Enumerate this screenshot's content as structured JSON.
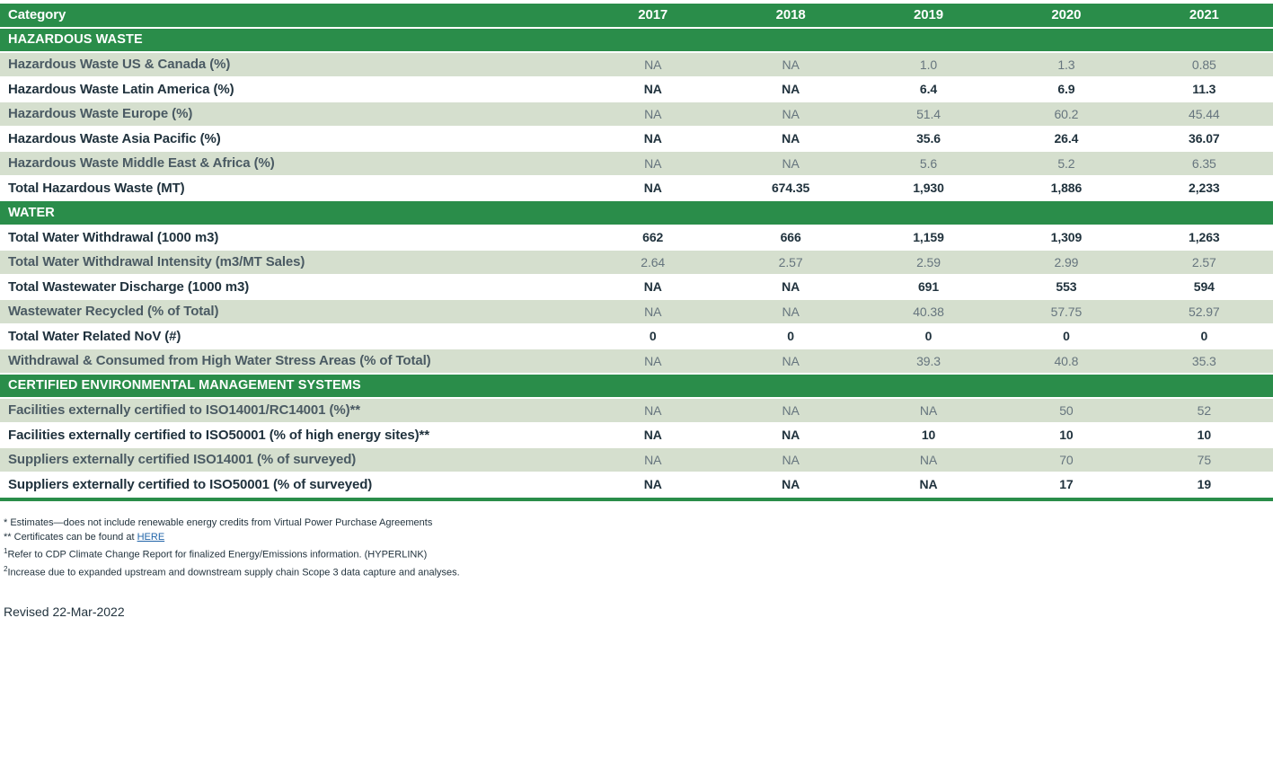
{
  "colors": {
    "header_green": "#2A8D4A",
    "row_light_green": "#D5DFCE",
    "row_white": "#FFFFFF",
    "text_dark": "#20323D",
    "text_light_label": "#4A5A63",
    "text_light_value": "#66757E",
    "link_blue": "#1F63A8"
  },
  "table": {
    "columns": [
      "Category",
      "2017",
      "2018",
      "2019",
      "2020",
      "2021"
    ],
    "sections": [
      {
        "title": "HAZARDOUS WASTE",
        "rows": [
          {
            "label": "Hazardous Waste US & Canada (%)",
            "values": [
              "NA",
              "NA",
              "1.0",
              "1.3",
              "0.85"
            ]
          },
          {
            "label": "Hazardous Waste Latin America (%)",
            "values": [
              "NA",
              "NA",
              "6.4",
              "6.9",
              "11.3"
            ]
          },
          {
            "label": "Hazardous Waste Europe (%)",
            "values": [
              "NA",
              "NA",
              "51.4",
              "60.2",
              "45.44"
            ]
          },
          {
            "label": "Hazardous Waste Asia Pacific (%)",
            "values": [
              "NA",
              "NA",
              "35.6",
              "26.4",
              "36.07"
            ]
          },
          {
            "label": "Hazardous Waste Middle East & Africa (%)",
            "values": [
              "NA",
              "NA",
              "5.6",
              "5.2",
              "6.35"
            ]
          },
          {
            "label": "Total Hazardous Waste (MT)",
            "values": [
              "NA",
              "674.35",
              "1,930",
              "1,886",
              "2,233"
            ]
          }
        ]
      },
      {
        "title": "WATER",
        "rows": [
          {
            "label": "Total Water Withdrawal (1000 m3)",
            "values": [
              "662",
              "666",
              "1,159",
              "1,309",
              "1,263"
            ]
          },
          {
            "label": "Total Water Withdrawal Intensity (m3/MT Sales)",
            "values": [
              "2.64",
              "2.57",
              "2.59",
              "2.99",
              "2.57"
            ]
          },
          {
            "label": "Total Wastewater Discharge (1000 m3)",
            "values": [
              "NA",
              "NA",
              "691",
              "553",
              "594"
            ]
          },
          {
            "label": "Wastewater Recycled (% of Total)",
            "values": [
              "NA",
              "NA",
              "40.38",
              "57.75",
              "52.97"
            ]
          },
          {
            "label": "Total Water Related NoV (#)",
            "values": [
              "0",
              "0",
              "0",
              "0",
              "0"
            ]
          },
          {
            "label": "Withdrawal & Consumed from High Water Stress Areas (% of Total)",
            "values": [
              "NA",
              "NA",
              "39.3",
              "40.8",
              "35.3"
            ]
          }
        ]
      },
      {
        "title": "CERTIFIED ENVIRONMENTAL MANAGEMENT SYSTEMS",
        "rows": [
          {
            "label": "Facilities externally certified to ISO14001/RC14001 (%)**",
            "values": [
              "NA",
              "NA",
              "NA",
              "50",
              "52"
            ]
          },
          {
            "label": "Facilities externally certified to ISO50001 (% of high energy sites)**",
            "values": [
              "NA",
              "NA",
              "10",
              "10",
              "10"
            ]
          },
          {
            "label": "Suppliers externally certified ISO14001 (% of surveyed)",
            "values": [
              "NA",
              "NA",
              "NA",
              "70",
              "75"
            ]
          },
          {
            "label": "Suppliers externally certified to ISO50001 (% of surveyed)",
            "values": [
              "NA",
              "NA",
              "NA",
              "17",
              "19"
            ]
          }
        ]
      }
    ]
  },
  "footnotes": [
    {
      "marker": "*",
      "superscript": false,
      "text": "Estimates—does not include renewable energy credits from Virtual Power Purchase Agreements",
      "link": null
    },
    {
      "marker": "**",
      "superscript": false,
      "text": "Certificates can be found at ",
      "link": "HERE"
    },
    {
      "marker": "1",
      "superscript": true,
      "text": "Refer to CDP Climate Change Report for finalized Energy/Emissions information. (HYPERLINK)",
      "link": null
    },
    {
      "marker": "2",
      "superscript": true,
      "text": "Increase due to expanded upstream and downstream supply chain Scope 3 data capture and analyses.",
      "link": null
    }
  ],
  "revised_label": "Revised 22-Mar-2022"
}
